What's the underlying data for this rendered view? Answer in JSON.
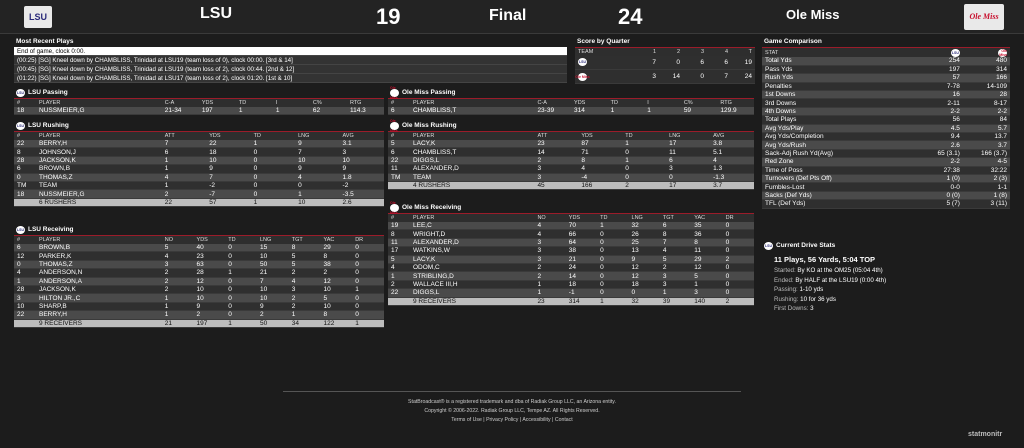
{
  "header": {
    "away_name": "LSU",
    "away_score": "19",
    "status": "Final",
    "home_score": "24",
    "home_name": "Ole Miss",
    "away_logo": "LSU",
    "home_logo": "Ole Miss"
  },
  "recent": {
    "title": "Most Recent Plays",
    "items": [
      "End of game, clock 0:00.",
      "(00:25) [SG] Kneel down by CHAMBLISS, Trinidad at LSU19 (team loss of 0), clock 00:00. [3rd & 14]",
      "(00:45) [SG] Kneel down by CHAMBLISS, Trinidad at LSU19 (team loss of 2), clock 00:44. [2nd & 12]",
      "(01:22) [SG] Kneel down by CHAMBLISS, Trinidad at LSU17 (team loss of 2), clock 01:20. [1st & 10]"
    ]
  },
  "quarter": {
    "title": "Score by Quarter",
    "cols": [
      "TEAM",
      "1",
      "2",
      "3",
      "4",
      "T"
    ],
    "rows": [
      [
        "LSU",
        "7",
        "0",
        "6",
        "6",
        "19"
      ],
      [
        "Ole Miss",
        "3",
        "14",
        "0",
        "7",
        "24"
      ]
    ]
  },
  "comp": {
    "title": "Game Comparison",
    "cols": [
      "STAT",
      "LSU",
      "Ole Miss"
    ],
    "rows": [
      [
        "Total Yds",
        "254",
        "480"
      ],
      [
        "Pass Yds",
        "197",
        "314"
      ],
      [
        "Rush Yds",
        "57",
        "166"
      ],
      [
        "Penalties",
        "7-78",
        "14-109"
      ],
      [
        "1st Downs",
        "16",
        "28"
      ],
      [
        "3rd Downs",
        "2-11",
        "8-17"
      ],
      [
        "4th Downs",
        "2-2",
        "2-2"
      ],
      [
        "Total Plays",
        "56",
        "84"
      ],
      [
        "Avg Yds/Play",
        "4.5",
        "5.7"
      ],
      [
        "Avg Yds/Completion",
        "9.4",
        "13.7"
      ],
      [
        "Avg Yds/Rush",
        "2.6",
        "3.7"
      ],
      [
        "Sack-Adj Rush Yd(Avg)",
        "65 (3.1)",
        "166 (3.7)"
      ],
      [
        "Red Zone",
        "2-2",
        "4-5"
      ],
      [
        "Time of Poss",
        "27:38",
        "32:22"
      ],
      [
        "Turnovers (Def Pts Off)",
        "1 (0)",
        "2 (3)"
      ],
      [
        "Fumbles-Lost",
        "0-0",
        "1-1"
      ],
      [
        "Sacks (Def Yds)",
        "0 (0)",
        "1 (8)"
      ],
      [
        "TFL (Def Yds)",
        "5 (7)",
        "3 (11)"
      ]
    ]
  },
  "drive": {
    "title": "Current Drive Stats",
    "summary": "11 Plays, 56 Yards, 5:04 TOP",
    "lines": [
      [
        "Started:",
        "By KO at the OM25 (05:04 4th)"
      ],
      [
        "Ended:",
        "By HALF at the LSU19 (0:00 4th)"
      ],
      [
        "Passing:",
        "1-10 yds"
      ],
      [
        "Rushing:",
        "10 for 36 yds"
      ],
      [
        "First Downs:",
        "3"
      ]
    ]
  },
  "lsu_pass": {
    "title": "LSU Passing",
    "cols": [
      "#",
      "PLAYER",
      "C-A",
      "YDS",
      "TD",
      "I",
      "C%",
      "RTG"
    ],
    "rows": [
      [
        "18",
        "NUSSMEIER,G",
        "21-34",
        "197",
        "1",
        "1",
        "62",
        "114.3"
      ]
    ]
  },
  "om_pass": {
    "title": "Ole Miss Passing",
    "cols": [
      "#",
      "PLAYER",
      "C-A",
      "YDS",
      "TD",
      "I",
      "C%",
      "RTG"
    ],
    "rows": [
      [
        "6",
        "CHAMBLISS,T",
        "23-39",
        "314",
        "1",
        "1",
        "59",
        "129.9"
      ]
    ]
  },
  "lsu_rush": {
    "title": "LSU Rushing",
    "cols": [
      "#",
      "PLAYER",
      "ATT",
      "YDS",
      "TD",
      "LNG",
      "AVG"
    ],
    "rows": [
      [
        "22",
        "BERRY,H",
        "7",
        "22",
        "1",
        "9",
        "3.1"
      ],
      [
        "8",
        "JOHNSON,J",
        "6",
        "18",
        "0",
        "7",
        "3"
      ],
      [
        "28",
        "JACKSON,K",
        "1",
        "10",
        "0",
        "10",
        "10"
      ],
      [
        "6",
        "BROWN,B",
        "1",
        "9",
        "0",
        "9",
        "9"
      ],
      [
        "0",
        "THOMAS,Z",
        "4",
        "7",
        "0",
        "4",
        "1.8"
      ],
      [
        "TM",
        "TEAM",
        "1",
        "-2",
        "0",
        "0",
        "-2"
      ],
      [
        "18",
        "NUSSMEIER,G",
        "2",
        "-7",
        "0",
        "1",
        "-3.5"
      ]
    ],
    "total": [
      "",
      "6 RUSHERS",
      "22",
      "57",
      "1",
      "10",
      "2.6"
    ]
  },
  "om_rush": {
    "title": "Ole Miss Rushing",
    "cols": [
      "#",
      "PLAYER",
      "ATT",
      "YDS",
      "TD",
      "LNG",
      "AVG"
    ],
    "rows": [
      [
        "5",
        "LACY,K",
        "23",
        "87",
        "1",
        "17",
        "3.8"
      ],
      [
        "6",
        "CHAMBLISS,T",
        "14",
        "71",
        "0",
        "11",
        "5.1"
      ],
      [
        "22",
        "DIGGS,L",
        "2",
        "8",
        "1",
        "6",
        "4"
      ],
      [
        "11",
        "ALEXANDER,D",
        "3",
        "4",
        "0",
        "3",
        "1.3"
      ],
      [
        "TM",
        "TEAM",
        "3",
        "-4",
        "0",
        "0",
        "-1.3"
      ]
    ],
    "total": [
      "",
      "4 RUSHERS",
      "45",
      "166",
      "2",
      "17",
      "3.7"
    ]
  },
  "lsu_rec": {
    "title": "LSU Receiving",
    "cols": [
      "#",
      "PLAYER",
      "NO",
      "YDS",
      "TD",
      "LNG",
      "TGT",
      "YAC",
      "DR"
    ],
    "rows": [
      [
        "6",
        "BROWN,B",
        "5",
        "40",
        "0",
        "15",
        "8",
        "29",
        "0"
      ],
      [
        "12",
        "PARKER,K",
        "4",
        "23",
        "0",
        "10",
        "5",
        "8",
        "0"
      ],
      [
        "0",
        "THOMAS,Z",
        "3",
        "63",
        "0",
        "50",
        "5",
        "38",
        "0"
      ],
      [
        "4",
        "ANDERSON,N",
        "2",
        "28",
        "1",
        "21",
        "2",
        "2",
        "0"
      ],
      [
        "1",
        "ANDERSON,A",
        "2",
        "12",
        "0",
        "7",
        "4",
        "12",
        "0"
      ],
      [
        "28",
        "JACKSON,K",
        "2",
        "10",
        "0",
        "10",
        "3",
        "10",
        "1"
      ],
      [
        "3",
        "HILTON JR.,C",
        "1",
        "10",
        "0",
        "10",
        "2",
        "5",
        "0"
      ],
      [
        "10",
        "SHARP,B",
        "1",
        "9",
        "0",
        "9",
        "2",
        "10",
        "0"
      ],
      [
        "22",
        "BERRY,H",
        "1",
        "2",
        "0",
        "2",
        "1",
        "8",
        "0"
      ]
    ],
    "total": [
      "",
      "9 RECEIVERS",
      "21",
      "197",
      "1",
      "50",
      "34",
      "122",
      "1"
    ]
  },
  "om_rec": {
    "title": "Ole Miss Receiving",
    "cols": [
      "#",
      "PLAYER",
      "NO",
      "YDS",
      "TD",
      "LNG",
      "TGT",
      "YAC",
      "DR"
    ],
    "rows": [
      [
        "19",
        "LEE,C",
        "4",
        "70",
        "1",
        "32",
        "6",
        "35",
        "0"
      ],
      [
        "8",
        "WRIGHT,D",
        "4",
        "66",
        "0",
        "26",
        "8",
        "36",
        "0"
      ],
      [
        "11",
        "ALEXANDER,D",
        "3",
        "64",
        "0",
        "25",
        "7",
        "8",
        "0"
      ],
      [
        "17",
        "WATKINS,W",
        "3",
        "38",
        "0",
        "13",
        "4",
        "11",
        "0"
      ],
      [
        "5",
        "LACY,K",
        "3",
        "21",
        "0",
        "9",
        "5",
        "29",
        "2"
      ],
      [
        "4",
        "ODOM,C",
        "2",
        "24",
        "0",
        "12",
        "2",
        "12",
        "0"
      ],
      [
        "1",
        "STRIBLING,D",
        "2",
        "14",
        "0",
        "12",
        "3",
        "5",
        "0"
      ],
      [
        "2",
        "WALLACE III,H",
        "1",
        "18",
        "0",
        "18",
        "3",
        "1",
        "0"
      ],
      [
        "22",
        "DIGGS,L",
        "1",
        "-1",
        "0",
        "0",
        "1",
        "3",
        "0"
      ]
    ],
    "total": [
      "",
      "9 RECEIVERS",
      "23",
      "314",
      "1",
      "32",
      "39",
      "140",
      "2"
    ]
  },
  "footer": {
    "l1": "StatBroadcast® is a registered trademark and dba of Radiak Group LLC, an Arizona entity.",
    "l2": "Copyright © 2006-2022. Radiak Group LLC, Tempe AZ. All Rights Reserved.",
    "terms": "Terms of Use",
    "privacy": "Privacy Policy",
    "access": "Accessibility",
    "contact": "Contact",
    "brand": "statmonitr"
  },
  "colors": {
    "accent": "#9b1c2a",
    "lsu": "#2a2a7a",
    "olemiss": "#c8102e"
  }
}
